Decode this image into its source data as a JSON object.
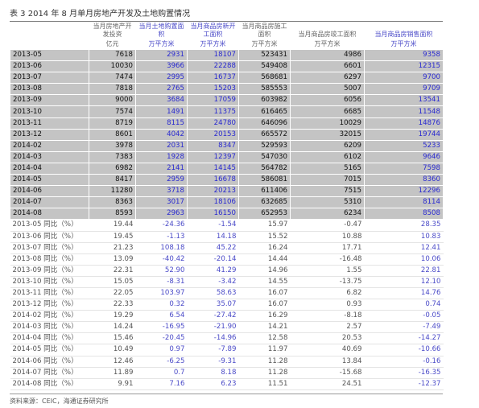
{
  "title": "表 3   2014 年 8 月单月房地产开发及土地购置情况",
  "table": {
    "headers": [
      {
        "label": "当月房地产开发投资",
        "unit": "亿元"
      },
      {
        "label": "当月土地购置面积",
        "unit": "万平方米"
      },
      {
        "label": "当月商品房新开工面积",
        "unit": "万平方米"
      },
      {
        "label": "当月商品房施工面积",
        "unit": "万平方米"
      },
      {
        "label": "当月商品房竣工面积",
        "unit": "万平方米"
      },
      {
        "label": "当月商品房销售面积",
        "unit": "万平方米"
      }
    ],
    "blue_columns": [
      2,
      3,
      6
    ],
    "rows": [
      [
        "2013-05",
        "7618",
        "2931",
        "18107",
        "523431",
        "4986",
        "9358"
      ],
      [
        "2013-06",
        "10030",
        "3966",
        "22288",
        "549408",
        "6601",
        "12315"
      ],
      [
        "2013-07",
        "7474",
        "2995",
        "16737",
        "568681",
        "6297",
        "9700"
      ],
      [
        "2013-08",
        "7818",
        "2765",
        "15203",
        "585553",
        "5007",
        "9709"
      ],
      [
        "2013-09",
        "9000",
        "3684",
        "17059",
        "603982",
        "6056",
        "13541"
      ],
      [
        "2013-10",
        "7574",
        "1491",
        "11375",
        "616465",
        "6685",
        "11548"
      ],
      [
        "2013-11",
        "8719",
        "8115",
        "24780",
        "646096",
        "10029",
        "14876"
      ],
      [
        "2013-12",
        "8601",
        "4042",
        "20153",
        "665572",
        "32015",
        "19744"
      ],
      [
        "2014-02",
        "3978",
        "2031",
        "8347",
        "529593",
        "6209",
        "5233"
      ],
      [
        "2014-03",
        "7383",
        "1928",
        "12397",
        "547030",
        "6102",
        "9646"
      ],
      [
        "2014-04",
        "6982",
        "2141",
        "14145",
        "564782",
        "5165",
        "7598"
      ],
      [
        "2014-05",
        "8417",
        "2959",
        "16678",
        "586081",
        "7015",
        "8360"
      ],
      [
        "2014-06",
        "11280",
        "3718",
        "20213",
        "611406",
        "7515",
        "12296"
      ],
      [
        "2014-07",
        "8363",
        "3017",
        "18106",
        "632685",
        "5310",
        "8114"
      ],
      [
        "2014-08",
        "8593",
        "2963",
        "16150",
        "652953",
        "6234",
        "8508"
      ]
    ],
    "yoy_rows": [
      [
        "2013-05 同比（%）",
        "19.44",
        "-24.36",
        "-1.54",
        "15.97",
        "-0.47",
        "28.35"
      ],
      [
        "2013-06 同比（%）",
        "19.45",
        "-1.13",
        "14.18",
        "15.52",
        "10.88",
        "10.83"
      ],
      [
        "2013-07 同比（%）",
        "21.23",
        "108.18",
        "45.22",
        "16.24",
        "17.71",
        "12.41"
      ],
      [
        "2013-08 同比（%）",
        "13.09",
        "-40.42",
        "-20.14",
        "14.44",
        "-16.48",
        "10.06"
      ],
      [
        "2013-09 同比（%）",
        "22.31",
        "52.90",
        "41.29",
        "14.96",
        "1.55",
        "22.81"
      ],
      [
        "2013-10 同比（%）",
        "15.05",
        "-8.31",
        "-3.42",
        "14.55",
        "-13.75",
        "12.10"
      ],
      [
        "2013-11 同比（%）",
        "22.05",
        "103.97",
        "58.63",
        "16.07",
        "6.82",
        "14.76"
      ],
      [
        "2013-12 同比（%）",
        "22.33",
        "0.32",
        "35.07",
        "16.07",
        "0.93",
        "0.74"
      ],
      [
        "2014-02 同比（%）",
        "19.29",
        "6.54",
        "-27.42",
        "16.29",
        "-8.18",
        "-0.05"
      ],
      [
        "2014-03 同比（%）",
        "14.24",
        "-16.95",
        "-21.90",
        "14.21",
        "2.57",
        "-7.49"
      ],
      [
        "2014-04 同比（%）",
        "15.46",
        "-20.45",
        "-14.96",
        "12.58",
        "20.53",
        "-14.27"
      ],
      [
        "2014-05 同比（%）",
        "10.49",
        "0.97",
        "-7.89",
        "11.97",
        "40.69",
        "-10.66"
      ],
      [
        "2014-06 同比（%）",
        "12.46",
        "-6.25",
        "-9.31",
        "11.28",
        "13.84",
        "-0.16"
      ],
      [
        "2014-07 同比（%）",
        "11.89",
        "0.7",
        "8.18",
        "11.28",
        "-15.68",
        "-16.35"
      ],
      [
        "2014-08 同比（%）",
        "9.91",
        "7.16",
        "6.23",
        "11.51",
        "24.51",
        "-12.37"
      ]
    ]
  },
  "source": "资料来源：CEIC，海通证券研究所"
}
